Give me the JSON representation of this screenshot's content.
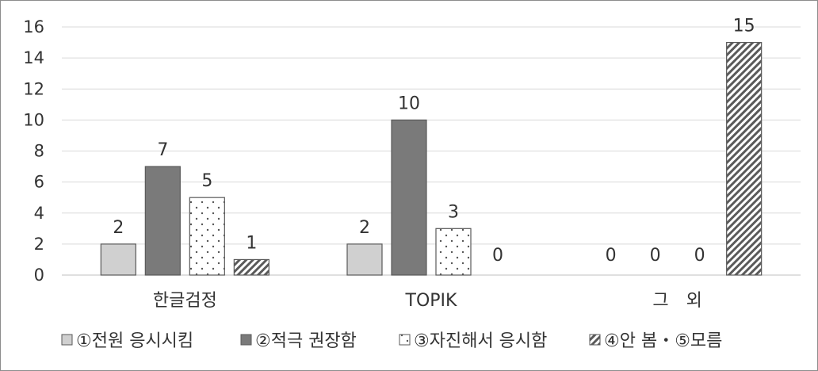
{
  "chart_data": {
    "type": "bar",
    "categories": [
      "한글검정",
      "TOPIK",
      "그　외"
    ],
    "series": [
      {
        "name": "①전원 응시시킴",
        "values": [
          2,
          2,
          0
        ],
        "color": "#d0d0d0",
        "pattern": "solid-light"
      },
      {
        "name": "②적극 권장함",
        "values": [
          7,
          10,
          0
        ],
        "color": "#7a7a7a",
        "pattern": "solid-dark"
      },
      {
        "name": "③자진해서 응시함",
        "values": [
          5,
          3,
          0
        ],
        "color": "#ffffff",
        "pattern": "dots"
      },
      {
        "name": "④안 봄・⑤모름",
        "values": [
          1,
          0,
          15
        ],
        "color": "#ffffff",
        "pattern": "diagonal"
      }
    ],
    "yticks": [
      0,
      2,
      4,
      6,
      8,
      10,
      12,
      14,
      16
    ],
    "ylim": [
      0,
      16
    ],
    "grid": true,
    "legend_position": "bottom",
    "title": "",
    "xlabel": "",
    "ylabel": ""
  }
}
